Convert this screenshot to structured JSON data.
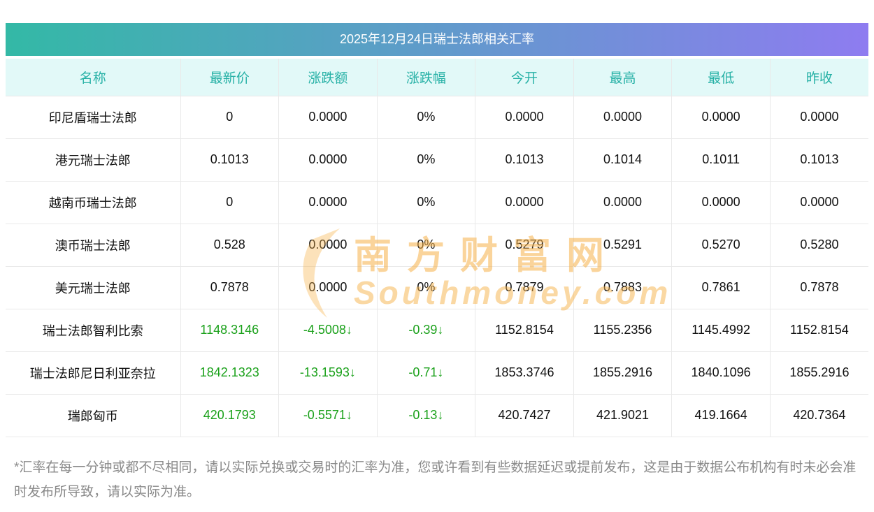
{
  "chart_data": {
    "type": "table",
    "title": "2025年12月24日瑞士法郎相关汇率",
    "columns": [
      "名称",
      "最新价",
      "涨跌额",
      "涨跌幅",
      "今开",
      "最高",
      "最低",
      "昨收"
    ],
    "rows": [
      {
        "name": "印尼盾瑞士法郎",
        "latest": "0",
        "change": "0.0000",
        "change_pct": "0%",
        "open": "0.0000",
        "high": "0.0000",
        "low": "0.0000",
        "prev_close": "0.0000",
        "trend": "flat"
      },
      {
        "name": "港元瑞士法郎",
        "latest": "0.1013",
        "change": "0.0000",
        "change_pct": "0%",
        "open": "0.1013",
        "high": "0.1014",
        "low": "0.1011",
        "prev_close": "0.1013",
        "trend": "flat"
      },
      {
        "name": "越南币瑞士法郎",
        "latest": "0",
        "change": "0.0000",
        "change_pct": "0%",
        "open": "0.0000",
        "high": "0.0000",
        "low": "0.0000",
        "prev_close": "0.0000",
        "trend": "flat"
      },
      {
        "name": "澳币瑞士法郎",
        "latest": "0.528",
        "change": "0.0000",
        "change_pct": "0%",
        "open": "0.5279",
        "high": "0.5291",
        "low": "0.5270",
        "prev_close": "0.5280",
        "trend": "flat"
      },
      {
        "name": "美元瑞士法郎",
        "latest": "0.7878",
        "change": "0.0000",
        "change_pct": "0%",
        "open": "0.7879",
        "high": "0.7883",
        "low": "0.7861",
        "prev_close": "0.7878",
        "trend": "flat"
      },
      {
        "name": "瑞士法郎智利比索",
        "latest": "1148.3146",
        "change": "-4.5008↓",
        "change_pct": "-0.39↓",
        "open": "1152.8154",
        "high": "1155.2356",
        "low": "1145.4992",
        "prev_close": "1152.8154",
        "trend": "down"
      },
      {
        "name": "瑞士法郎尼日利亚奈拉",
        "latest": "1842.1323",
        "change": "-13.1593↓",
        "change_pct": "-0.71↓",
        "open": "1853.3746",
        "high": "1855.2916",
        "low": "1840.1096",
        "prev_close": "1855.2916",
        "trend": "down"
      },
      {
        "name": "瑞郎匈币",
        "latest": "420.1793",
        "change": "-0.5571↓",
        "change_pct": "-0.13↓",
        "open": "420.7427",
        "high": "421.9021",
        "low": "419.1664",
        "prev_close": "420.7364",
        "trend": "down"
      }
    ]
  },
  "watermark": {
    "cn": "南方财富网",
    "en": "Southmoney.com"
  },
  "footnote": "*汇率在每一分钟或都不尽相同，请以实际兑换或交易时的汇率为准，您或许看到有些数据延迟或提前发布，这是由于数据公布机构有时未必会准时发布所导致，请以实际为准。",
  "colors": {
    "gradient_left": "#33b9a6",
    "gradient_right": "#8e7cf0",
    "header_bg": "#e2f9f8",
    "header_text": "#27b1a6",
    "down_green": "#1ba11b",
    "border": "#e9e9e9",
    "footnote_text": "#8a8a8a",
    "watermark_orange": "#f7b24a"
  }
}
